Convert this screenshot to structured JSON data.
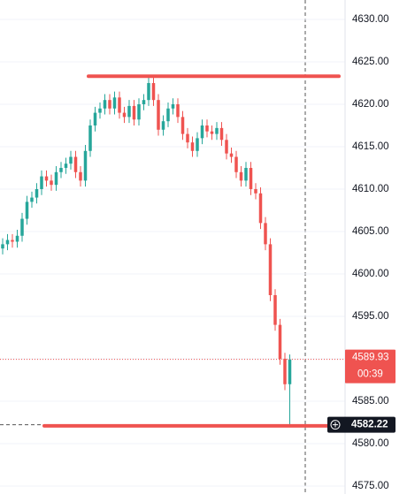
{
  "chart_data": {
    "type": "candlestick",
    "up_color": "#26a69a",
    "down_color": "#ef5350",
    "open": [
      4603,
      4603.5,
      4604,
      4603.8,
      4604.5,
      4606.5,
      4608.5,
      4609,
      4610,
      4611.5,
      4611,
      4610.5,
      4612,
      4612.5,
      4613,
      4613.8,
      4612,
      4611,
      4614.5,
      4617.5,
      4619,
      4619.5,
      4620.5,
      4619.5,
      4620.8,
      4619,
      4618.5,
      4619.8,
      4618.2,
      4620,
      4620.5,
      4622.5,
      4620.5,
      4617,
      4618,
      4619.5,
      4620,
      4618.5,
      4616.5,
      4615.5,
      4614.5,
      4616,
      4617.5,
      4616.8,
      4616.5,
      4617.2,
      4615.8,
      4614.2,
      4613.8,
      4612,
      4611,
      4612.5,
      4610,
      4609.5,
      4606,
      4603.5,
      4597.5,
      4594,
      4590,
      4587
    ],
    "high": [
      4604.2,
      4604.7,
      4604.7,
      4605.2,
      4607.2,
      4609.2,
      4609.7,
      4610.7,
      4612.2,
      4612.2,
      4611.7,
      4612.7,
      4613.2,
      4613.7,
      4614.5,
      4614.5,
      4612.7,
      4615.2,
      4618.2,
      4619.7,
      4620.2,
      4621.2,
      4621.2,
      4621.5,
      4621.5,
      4619.7,
      4620.5,
      4620.5,
      4620.7,
      4621.2,
      4623.2,
      4623.2,
      4621.2,
      4618.7,
      4620.2,
      4620.7,
      4620.7,
      4619.2,
      4617.2,
      4616.2,
      4616.7,
      4618.2,
      4618.2,
      4617.5,
      4617.9,
      4617.9,
      4616.5,
      4614.9,
      4614.5,
      4612.7,
      4613.2,
      4613.2,
      4610.7,
      4610.2,
      4606.7,
      4604.2,
      4598.2,
      4594.7,
      4590.7,
      4590.5
    ],
    "low": [
      4602.3,
      4602.8,
      4603.1,
      4603.1,
      4603.8,
      4605.8,
      4607.8,
      4608.3,
      4609.3,
      4610.3,
      4609.8,
      4609.8,
      4611.3,
      4611.8,
      4612.3,
      4611.3,
      4610.3,
      4610.3,
      4613.8,
      4616.8,
      4618.3,
      4618.8,
      4618.8,
      4618.8,
      4618.3,
      4617.8,
      4617.8,
      4617.5,
      4617.5,
      4619.3,
      4619.8,
      4619.8,
      4616.3,
      4616.3,
      4617.3,
      4618.8,
      4617.8,
      4615.8,
      4614.8,
      4613.8,
      4613.8,
      4615.3,
      4616.1,
      4615.8,
      4615.8,
      4615.1,
      4613.5,
      4613.1,
      4611.3,
      4610.3,
      4610.3,
      4609.3,
      4608.8,
      4605.3,
      4602.8,
      4596.8,
      4593.3,
      4589.3,
      4586.3,
      4582.22
    ],
    "close": [
      4603.5,
      4604,
      4603.8,
      4604.5,
      4606.5,
      4608.5,
      4609,
      4610,
      4611.5,
      4611,
      4610.5,
      4612,
      4612.5,
      4613,
      4613.8,
      4612,
      4611,
      4614.5,
      4617.5,
      4619,
      4619.5,
      4620.5,
      4619.5,
      4620.8,
      4619,
      4618.5,
      4619.8,
      4618.2,
      4620,
      4620.5,
      4622.5,
      4620.5,
      4617,
      4618,
      4619.5,
      4620,
      4618.5,
      4616.5,
      4615.5,
      4614.5,
      4616,
      4617.5,
      4616.8,
      4616.5,
      4617.2,
      4615.8,
      4614.2,
      4613.8,
      4612,
      4611,
      4612.5,
      4610,
      4609.5,
      4606,
      4603.5,
      4597.5,
      4594,
      4590,
      4587,
      4589.93
    ],
    "ylim": [
      4574.06,
      4632.29
    ],
    "yticks": [
      {
        "value": 4575,
        "label": "4575.00"
      },
      {
        "value": 4580,
        "label": "4580.00"
      },
      {
        "value": 4585,
        "label": "4585.00"
      },
      {
        "value": 4590,
        "label": "4590.00"
      },
      {
        "value": 4595,
        "label": "4595.00"
      },
      {
        "value": 4600,
        "label": "4600.00"
      },
      {
        "value": 4605,
        "label": "4605.00"
      },
      {
        "value": 4610,
        "label": "4610.00"
      },
      {
        "value": 4615,
        "label": "4615.00"
      },
      {
        "value": 4620,
        "label": "4620.00"
      },
      {
        "value": 4625,
        "label": "4625.00"
      },
      {
        "value": 4630,
        "label": "4630.00"
      }
    ],
    "grid": true,
    "last_price": 4589.93,
    "countdown": "00:39",
    "crosshair_price": 4582.22,
    "drawn_lines": [
      4623.3,
      4582.1
    ],
    "drawn_line_color": "#ef5350"
  }
}
